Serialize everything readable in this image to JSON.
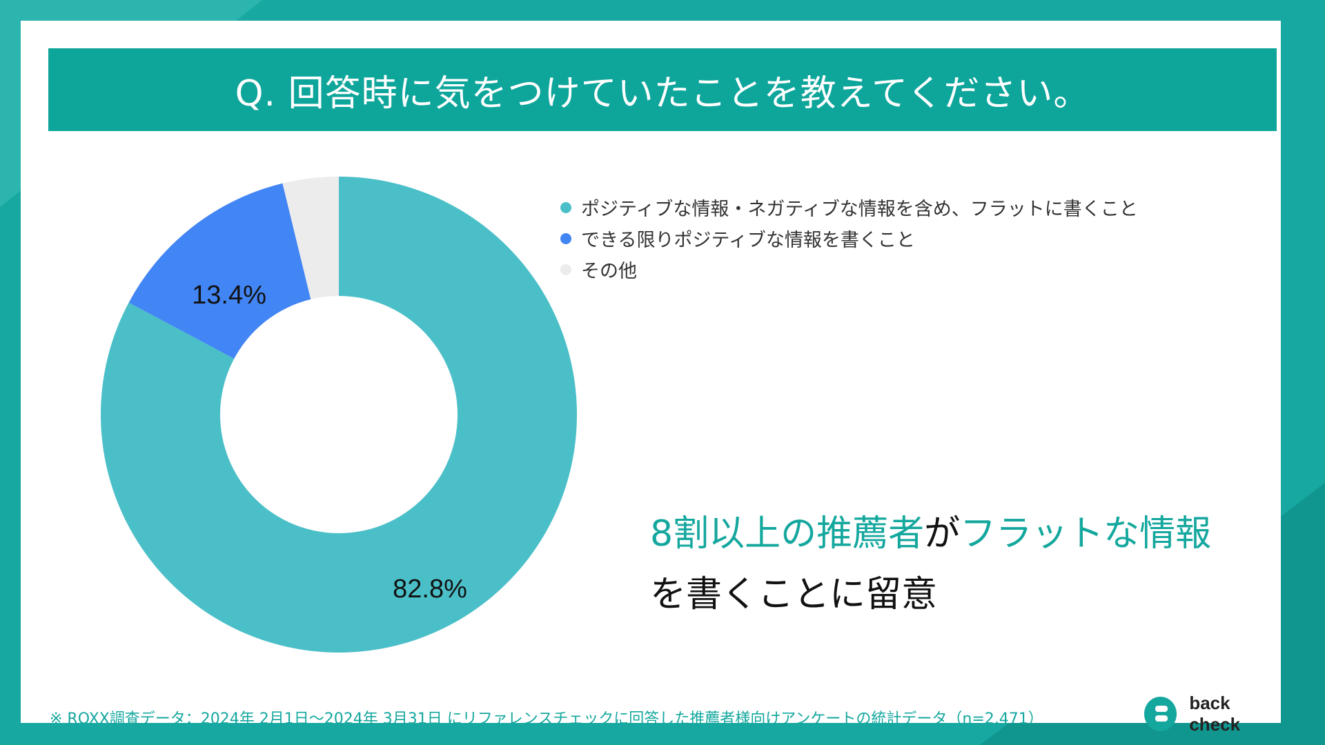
{
  "title": "Q. 回答時に気をつけていたことを教えてください。",
  "colors": {
    "background": "#17a8a2",
    "title_bar": "#0ea59b",
    "accent": "#14a79e",
    "series_flat": "#4bbfc8",
    "series_positive": "#4285f4",
    "series_other": "#ececec"
  },
  "chart_data": {
    "type": "pie",
    "style": "donut",
    "categories": [
      "ポジティブな情報・ネガティブな情報を含め、フラットに書くこと",
      "できる限りポジティブな情報を書くこと",
      "その他"
    ],
    "values": [
      82.8,
      13.4,
      3.8
    ],
    "data_labels": [
      "82.8%",
      "13.4%",
      ""
    ],
    "colors": [
      "#4bbfc8",
      "#4285f4",
      "#ececec"
    ],
    "legend_position": "right-top"
  },
  "legend": {
    "items": [
      "ポジティブな情報・ネガティブな情報を含め、フラットに書くこと",
      "できる限りポジティブな情報を書くこと",
      "その他"
    ]
  },
  "headline": {
    "part1": "8割以上の推薦者",
    "part2": "が",
    "part3": "フラットな情報",
    "line2": "を書くことに留意"
  },
  "footnote": "※ ROXX調査データ：2024年 2月1日〜2024年 3月31日 にリファレンスチェックに回答した推薦者様向けアンケートの統計データ（n=2,471）",
  "logo": {
    "text": "back check",
    "icon": "back-check-logo-icon"
  }
}
